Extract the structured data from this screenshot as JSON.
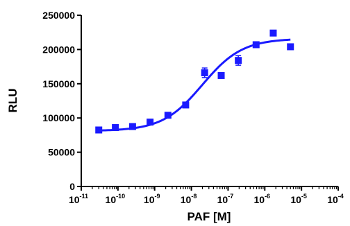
{
  "chart_data": {
    "type": "scatter",
    "xlabel": "PAF [M]",
    "ylabel": "RLU",
    "x_scale": "log",
    "xlim": [
      1e-11,
      0.0001
    ],
    "ylim": [
      0,
      250000
    ],
    "x_tick_labels": [
      {
        "base": "10",
        "exp": "-11"
      },
      {
        "base": "10",
        "exp": "-10"
      },
      {
        "base": "10",
        "exp": "-9"
      },
      {
        "base": "10",
        "exp": "-8"
      },
      {
        "base": "10",
        "exp": "-7"
      },
      {
        "base": "10",
        "exp": "-6"
      },
      {
        "base": "10",
        "exp": "-5"
      },
      {
        "base": "10",
        "exp": "-4"
      }
    ],
    "y_ticks": [
      0,
      50000,
      100000,
      150000,
      200000,
      250000
    ],
    "y_tick_labels": [
      "0",
      "50000",
      "100000",
      "150000",
      "200000",
      "250000"
    ],
    "color": "#1a1aff",
    "grid": false,
    "series": [
      {
        "points": [
          {
            "x": 3e-11,
            "y": 82500,
            "err": 1000
          },
          {
            "x": 8.5e-11,
            "y": 86000,
            "err": 1500
          },
          {
            "x": 2.5e-10,
            "y": 87500,
            "err": 1500
          },
          {
            "x": 7.5e-10,
            "y": 94000,
            "err": 1500
          },
          {
            "x": 2.3e-09,
            "y": 104000,
            "err": 1500
          },
          {
            "x": 7e-09,
            "y": 119000,
            "err": 1500
          },
          {
            "x": 2.3e-08,
            "y": 166000,
            "err": 7000
          },
          {
            "x": 6.5e-08,
            "y": 162000,
            "err": 2000
          },
          {
            "x": 1.9e-07,
            "y": 184000,
            "err": 7000
          },
          {
            "x": 5.8e-07,
            "y": 207000,
            "err": 1500
          },
          {
            "x": 1.7e-06,
            "y": 224000,
            "err": 4000
          },
          {
            "x": 5e-06,
            "y": 204000,
            "err": 1000
          }
        ],
        "fit": {
          "bottom": 81000,
          "top": 216000,
          "logEC50": -7.7,
          "hill": 0.8,
          "x_range": [
            3e-11,
            5e-06
          ]
        }
      }
    ]
  }
}
